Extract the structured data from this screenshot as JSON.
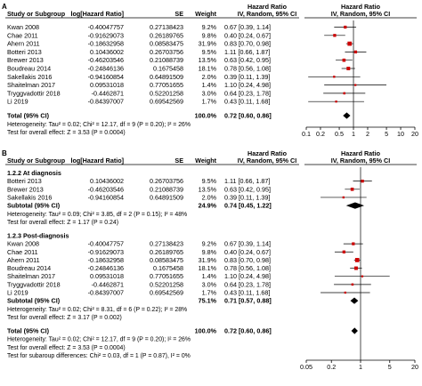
{
  "chart_data": [
    {
      "type": "forest",
      "panel_label": "A",
      "headers": {
        "study": "Study or Subgroup",
        "log_hr": "log[Hazard Ratio]",
        "se": "SE",
        "weight": "Weight",
        "hr_top": "Hazard Ratio",
        "hr_ci": "IV, Random, 95% CI",
        "plot_top": "Hazard Ratio",
        "plot_ci": "IV, Random, 95% CI"
      },
      "rows": [
        {
          "kind": "study",
          "study": "Kwan 2008",
          "log_hr": "-0.40047757",
          "se": "0.27138423",
          "weight": "9.2%",
          "ci_text": "0.67 [0.39, 1.14]",
          "hr": 0.67,
          "lo": 0.39,
          "hi": 1.14
        },
        {
          "kind": "study",
          "study": "Chae 2011",
          "log_hr": "-0.91629073",
          "se": "0.26189765",
          "weight": "9.8%",
          "ci_text": "0.40 [0.24, 0.67]",
          "hr": 0.4,
          "lo": 0.24,
          "hi": 0.67
        },
        {
          "kind": "study",
          "study": "Ahern 2011",
          "log_hr": "-0.18632958",
          "se": "0.08583475",
          "weight": "31.9%",
          "ci_text": "0.83 [0.70, 0.98]",
          "hr": 0.83,
          "lo": 0.7,
          "hi": 0.98
        },
        {
          "kind": "study",
          "study": "Botteri 2013",
          "log_hr": "0.10436002",
          "se": "0.26703756",
          "weight": "9.5%",
          "ci_text": "1.11 [0.66, 1.87]",
          "hr": 1.11,
          "lo": 0.66,
          "hi": 1.87
        },
        {
          "kind": "study",
          "study": "Brewer 2013",
          "log_hr": "-0.46203546",
          "se": "0.21088739",
          "weight": "13.5%",
          "ci_text": "0.63 [0.42, 0.95]",
          "hr": 0.63,
          "lo": 0.42,
          "hi": 0.95
        },
        {
          "kind": "study",
          "study": "Boudreau 2014",
          "log_hr": "-0.24846136",
          "se": "0.1675458",
          "weight": "18.1%",
          "ci_text": "0.78 [0.56, 1.08]",
          "hr": 0.78,
          "lo": 0.56,
          "hi": 1.08
        },
        {
          "kind": "study",
          "study": "Sakellakis 2016",
          "log_hr": "-0.94160854",
          "se": "0.64891509",
          "weight": "2.0%",
          "ci_text": "0.39 [0.11, 1.39]",
          "hr": 0.39,
          "lo": 0.11,
          "hi": 1.39
        },
        {
          "kind": "study",
          "study": "Shaitelman 2017",
          "log_hr": "0.09531018",
          "se": "0.77051655",
          "weight": "1.4%",
          "ci_text": "1.10 [0.24, 4.98]",
          "hr": 1.1,
          "lo": 0.24,
          "hi": 4.98
        },
        {
          "kind": "study",
          "study": "Tryggvadottir 2018",
          "log_hr": "-0.4462871",
          "se": "0.52201258",
          "weight": "3.0%",
          "ci_text": "0.64 [0.23, 1.78]",
          "hr": 0.64,
          "lo": 0.23,
          "hi": 1.78
        },
        {
          "kind": "study",
          "study": "Li 2019",
          "log_hr": "-0.84397007",
          "se": "0.69542569",
          "weight": "1.7%",
          "ci_text": "0.43 [0.11, 1.68]",
          "hr": 0.43,
          "lo": 0.11,
          "hi": 1.68
        },
        {
          "kind": "gap"
        },
        {
          "kind": "total",
          "study": "Total (95% CI)",
          "weight": "100.0%",
          "ci_text": "0.72 [0.60, 0.86]",
          "hr": 0.72,
          "lo": 0.6,
          "hi": 0.86
        },
        {
          "kind": "note",
          "study": "Heterogeneity: Tau² = 0.02; Chi² = 12.17, df = 9 (P = 0.20); I² = 26%"
        },
        {
          "kind": "note",
          "study": "Test for overall effect: Z = 3.53 (P = 0.0004)"
        }
      ],
      "x_scale": "log",
      "xlim": [
        0.1,
        20
      ],
      "x_ticks": [
        0.1,
        0.2,
        0.5,
        1,
        2,
        5,
        10,
        20
      ],
      "x_tick_labels": [
        "0.1",
        "0.2",
        "0.5",
        "1",
        "2",
        "5",
        "10",
        "20"
      ],
      "marker_color": "#cc0000",
      "diamond_color": "#000000"
    },
    {
      "type": "forest",
      "panel_label": "B",
      "headers": {
        "study": "Study or Subgroup",
        "log_hr": "log[Hazard Ratio]",
        "se": "SE",
        "weight": "Weight",
        "hr_top": "Hazard Ratio",
        "hr_ci": "IV, Random, 95% CI",
        "plot_top": "Hazard Ratio",
        "plot_ci": "IV, Random, 95% CI"
      },
      "rows": [
        {
          "kind": "subgroup",
          "study": "1.2.2 At diagnosis"
        },
        {
          "kind": "study",
          "study": "Botteri 2013",
          "log_hr": "0.10436002",
          "se": "0.26703756",
          "weight": "9.5%",
          "ci_text": "1.11 [0.66, 1.87]",
          "hr": 1.11,
          "lo": 0.66,
          "hi": 1.87
        },
        {
          "kind": "study",
          "study": "Brewer 2013",
          "log_hr": "-0.46203546",
          "se": "0.21088739",
          "weight": "13.5%",
          "ci_text": "0.63 [0.42, 0.95]",
          "hr": 0.63,
          "lo": 0.42,
          "hi": 0.95
        },
        {
          "kind": "study",
          "study": "Sakellakis 2016",
          "log_hr": "-0.94160854",
          "se": "0.64891509",
          "weight": "2.0%",
          "ci_text": "0.39 [0.11, 1.39]",
          "hr": 0.39,
          "lo": 0.11,
          "hi": 1.39
        },
        {
          "kind": "subtotal",
          "study": "Subtotal (95% CI)",
          "weight": "24.9%",
          "ci_text": "0.74 [0.45, 1.22]",
          "hr": 0.74,
          "lo": 0.45,
          "hi": 1.22
        },
        {
          "kind": "note",
          "study": "Heterogeneity: Tau² = 0.09; Chi² = 3.85, df = 2 (P = 0.15); I² = 48%"
        },
        {
          "kind": "note",
          "study": "Test for overall effect: Z = 1.17 (P = 0.24)"
        },
        {
          "kind": "gap"
        },
        {
          "kind": "subgroup",
          "study": "1.2.3 Post-diagnosis"
        },
        {
          "kind": "study",
          "study": "Kwan 2008",
          "log_hr": "-0.40047757",
          "se": "0.27138423",
          "weight": "9.2%",
          "ci_text": "0.67 [0.39, 1.14]",
          "hr": 0.67,
          "lo": 0.39,
          "hi": 1.14
        },
        {
          "kind": "study",
          "study": "Chae 2011",
          "log_hr": "-0.91629073",
          "se": "0.26189765",
          "weight": "9.8%",
          "ci_text": "0.40 [0.24, 0.67]",
          "hr": 0.4,
          "lo": 0.24,
          "hi": 0.67
        },
        {
          "kind": "study",
          "study": "Ahern 2011",
          "log_hr": "-0.18632958",
          "se": "0.08583475",
          "weight": "31.9%",
          "ci_text": "0.83 [0.70, 0.98]",
          "hr": 0.83,
          "lo": 0.7,
          "hi": 0.98
        },
        {
          "kind": "study",
          "study": "Boudreau 2014",
          "log_hr": "-0.24846136",
          "se": "0.1675458",
          "weight": "18.1%",
          "ci_text": "0.78 [0.56, 1.08]",
          "hr": 0.78,
          "lo": 0.56,
          "hi": 1.08
        },
        {
          "kind": "study",
          "study": "Shaitelman 2017",
          "log_hr": "0.09531018",
          "se": "0.77051655",
          "weight": "1.4%",
          "ci_text": "1.10 [0.24, 4.98]",
          "hr": 1.1,
          "lo": 0.24,
          "hi": 4.98
        },
        {
          "kind": "study",
          "study": "Tryggvadottir 2018",
          "log_hr": "-0.4462871",
          "se": "0.52201258",
          "weight": "3.0%",
          "ci_text": "0.64 [0.23, 1.78]",
          "hr": 0.64,
          "lo": 0.23,
          "hi": 1.78
        },
        {
          "kind": "study",
          "study": "Li 2019",
          "log_hr": "-0.84397007",
          "se": "0.69542569",
          "weight": "1.7%",
          "ci_text": "0.43 [0.11, 1.68]",
          "hr": 0.43,
          "lo": 0.11,
          "hi": 1.68
        },
        {
          "kind": "subtotal",
          "study": "Subtotal (95% CI)",
          "weight": "75.1%",
          "ci_text": "0.71 [0.57, 0.88]",
          "hr": 0.71,
          "lo": 0.57,
          "hi": 0.88
        },
        {
          "kind": "note",
          "study": "Heterogeneity: Tau² = 0.02; Chi² = 8.31, df = 6 (P = 0.22); I² = 28%"
        },
        {
          "kind": "note",
          "study": "Test for overall effect: Z = 3.17 (P = 0.002)"
        },
        {
          "kind": "gap"
        },
        {
          "kind": "total",
          "study": "Total (95% CI)",
          "weight": "100.0%",
          "ci_text": "0.72 [0.60, 0.86]",
          "hr": 0.72,
          "lo": 0.6,
          "hi": 0.86
        },
        {
          "kind": "note",
          "study": "Heterogeneity: Tau² = 0.02; Chi² = 12.17, df = 9 (P = 0.20); I² = 26%"
        },
        {
          "kind": "note",
          "study": "Test for overall effect: Z = 3.53 (P = 0.0004)"
        },
        {
          "kind": "note",
          "study": "Test for subaroup differences: Chi² = 0.03, df = 1 (P = 0.87), I² = 0%"
        }
      ],
      "x_scale": "log",
      "xlim": [
        0.05,
        20
      ],
      "x_ticks": [
        0.05,
        0.2,
        1,
        5,
        20
      ],
      "x_tick_labels": [
        "0.05",
        "0.2",
        "1",
        "5",
        "20"
      ],
      "marker_color": "#cc0000",
      "diamond_color": "#000000"
    }
  ]
}
